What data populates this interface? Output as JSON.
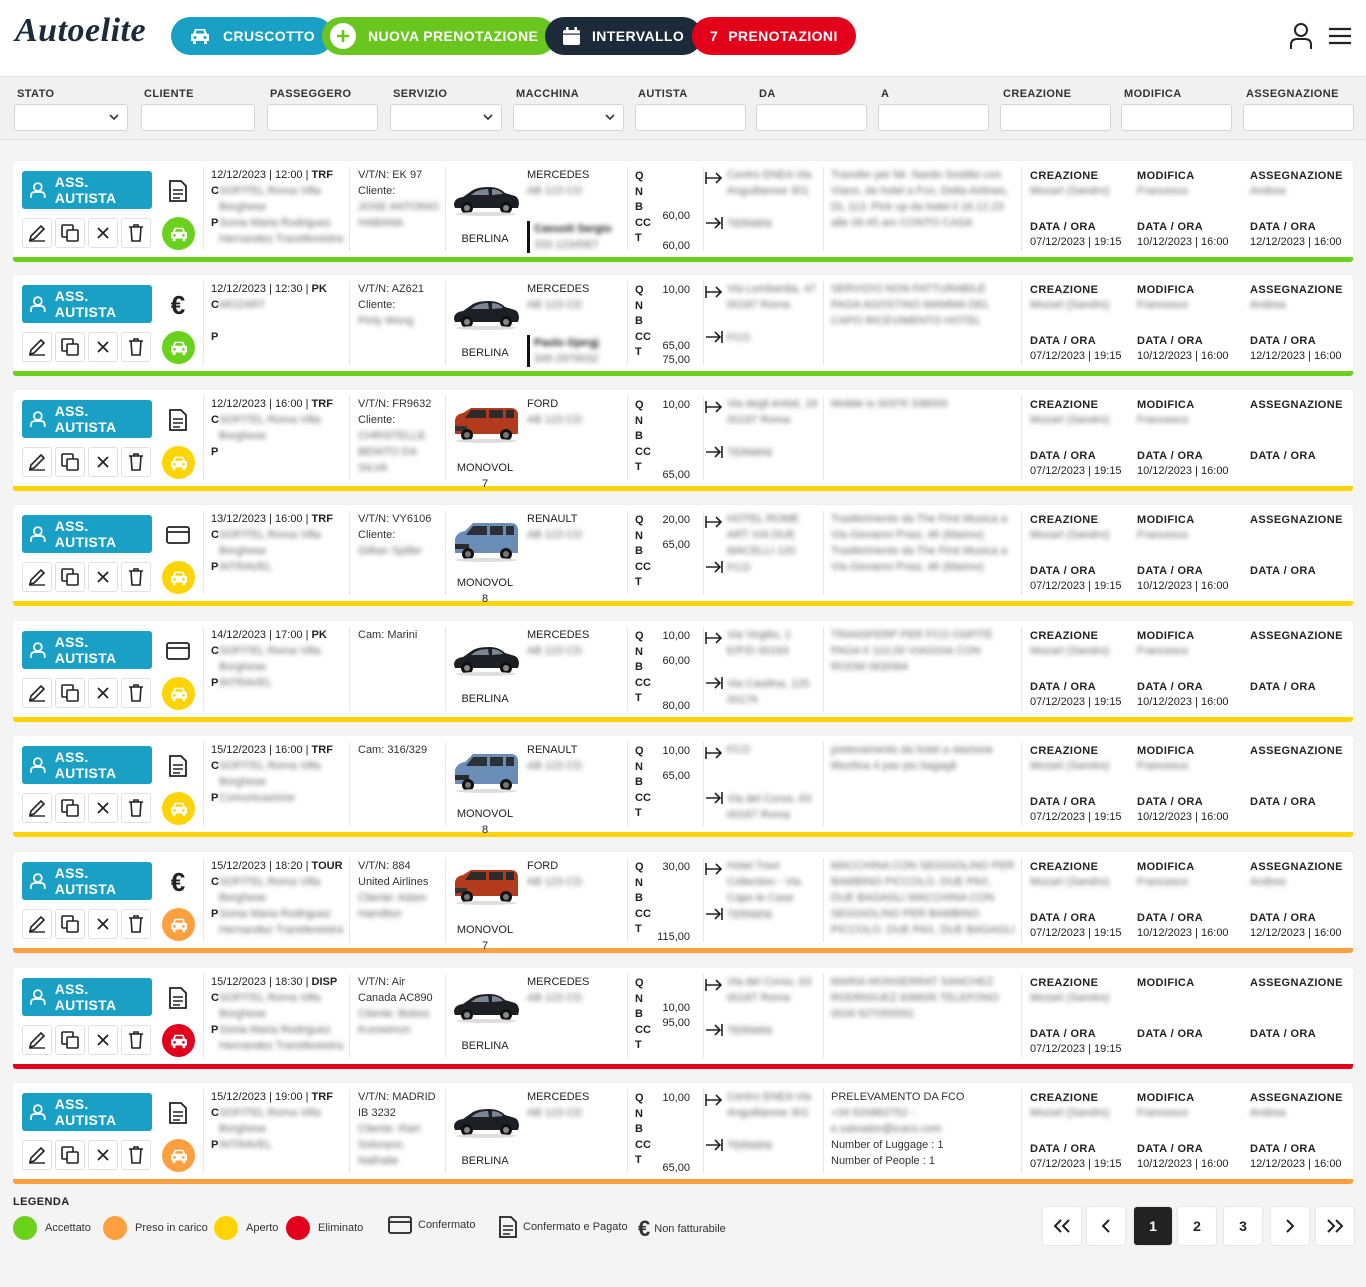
{
  "header": {
    "logo": "Autoelite",
    "btn_dashboard": "CRUSCOTTO",
    "btn_new": "NUOVA PRENOTAZIONE",
    "btn_interval": "INTERVALLO",
    "bookings_count": "7",
    "bookings_label": "PRENOTAZIONI"
  },
  "colors": {
    "blue": "#1aa0c5",
    "green": "#6ad11d",
    "navy": "#1d2a3a",
    "red": "#e3001b",
    "yellow": "#ffd400",
    "orange": "#ff9f40"
  },
  "filters": [
    "STATO",
    "CLIENTE",
    "PASSEGGERO",
    "SERVIZIO",
    "MACCHINA",
    "AUTISTA",
    "DA",
    "A",
    "CREAZIONE",
    "MODIFICA",
    "ASSEGNAZIONE"
  ],
  "labels": {
    "ass": "ASS. AUTISTA",
    "creazione": "CREAZIONE",
    "modifica": "MODIFICA",
    "assegnazione": "ASSEGNAZIONE",
    "dataora": "DATA / ORA",
    "q": "Q",
    "n": "N",
    "b": "B",
    "cc": "CC",
    "t": "T",
    "c": "C",
    "p": "P"
  },
  "rows": [
    {
      "status": "green",
      "pay": "doc",
      "date": "12/12/2023 | 12:00",
      "type": "TRF",
      "cliente": "SOFITEL Roma Villa Borghese",
      "pass": "Sonia Maria Rodriguez Hernandez Transfereistra",
      "vtn": "V/T/N: EK 97",
      "cl_label": "Cliente:",
      "cl_name": "JOSE ANTONIO HABANA",
      "car": "MERCEDES",
      "plate": "AB 123 CD",
      "model": "BERLINA",
      "img": "sedan",
      "drv": "Cavuoti Sergio",
      "tel": "333 1234567",
      "q": "",
      "n": "",
      "b": "60,00",
      "cc": "",
      "t": "60,00",
      "from": "Centro ENEA Via Anguillarese 301",
      "to": "TERMINI",
      "notes": "Transfer per Mr. Nardo Sostilio con Viano, da hotel a Fco, Delta Airlines, DL 113. Pick up da hotel il 18.12.23 alle 06:45 am CONTO CASA",
      "cr_who": "Mozart (Sandro)",
      "cr": "07/12/2023 | 19:15",
      "mo_who": "Francesco",
      "mo": "10/12/2023 | 16:00",
      "as_who": "Andrea",
      "as": "12/12/2023 | 16:00"
    },
    {
      "status": "green",
      "pay": "euro",
      "date": "12/12/2023 | 12:30",
      "type": "PK",
      "cliente": "MOZART",
      "pass": "",
      "vtn": "V/T/N: AZ621",
      "cl_label": "Cliente:",
      "cl_name": "Pinly Wong",
      "car": "MERCEDES",
      "plate": "AB 123 CD",
      "model": "BERLINA",
      "img": "sedan",
      "drv": "Paolo Gjergj",
      "tel": "349 2979032",
      "q": "10,00",
      "n": "",
      "b": "",
      "cc": "65,00",
      "t": "75,00",
      "from": "Via Lombardia, 47 00187 Roma",
      "to": "FCO",
      "notes": "SERVIZIO NON FATTURABILE PAGA AGOSTINO MAMMA DEL CAPO RICEVIMENTO HOTEL",
      "cr_who": "Mozart (Sandro)",
      "cr": "07/12/2023 | 19:15",
      "mo_who": "Francesco",
      "mo": "10/12/2023 | 16:00",
      "as_who": "Andrea",
      "as": "12/12/2023 | 16:00"
    },
    {
      "status": "yellow",
      "pay": "doc",
      "date": "12/12/2023 | 16:00",
      "type": "TRF",
      "cliente": "SOFITEL Roma Villa Borghese",
      "pass": "",
      "vtn": "V/T/N: FR9632",
      "cl_label": "Cliente:",
      "cl_name": "CHRISTELLE BENITO DA SILVA",
      "car": "FORD",
      "plate": "AB 123 CD",
      "model": "MONOVOL 7",
      "img": "vanred",
      "drv": "",
      "tel": "",
      "q": "10,00",
      "n": "",
      "b": "",
      "cc": "",
      "t": "65,00",
      "from": "Via degli Artisti, 18 00187 Roma",
      "to": "TERMINI",
      "notes": "Mobile is 00376 338000",
      "cr_who": "Mozart (Sandro)",
      "cr": "07/12/2023 | 19:15",
      "mo_who": "Francesco",
      "mo": "10/12/2023 | 16:00",
      "as_who": "",
      "as": ""
    },
    {
      "status": "yellow",
      "pay": "card",
      "date": "13/12/2023 | 16:00",
      "type": "TRF",
      "cliente": "SOFITEL Roma Villa Borghese",
      "pass": "INTRAVEL",
      "vtn": "V/T/N: VY6106",
      "cl_label": "Cliente:",
      "cl_name": "Gillian Spiller",
      "car": "RENAULT",
      "plate": "AB 123 CD",
      "model": "MONOVOL 8",
      "img": "vanblue",
      "drv": "",
      "tel": "",
      "q": "20,00",
      "n": "65,00",
      "b": "",
      "cc": "",
      "t": "",
      "from": "HOTEL ROME ART VIA DUE MACELLI 120",
      "to": "FCO",
      "notes": "Trasferimento da The First Musica a Via Giovanni Prasi, 46 (Marino) Trasferimento da The First Musica a Via Giovanni Prasi, 46 (Marino)",
      "cr_who": "Mozart (Sandro)",
      "cr": "07/12/2023 | 19:15",
      "mo_who": "Francesco",
      "mo": "10/12/2023 | 16:00",
      "as_who": "",
      "as": ""
    },
    {
      "status": "yellow",
      "pay": "card",
      "date": "14/12/2023 | 17:00",
      "type": "PK",
      "cliente": "SOFITEL Roma Villa Borghese",
      "pass": "INTRAVEL",
      "vtn": "Cam: Marini",
      "cl_label": "",
      "cl_name": "",
      "car": "MERCEDES",
      "plate": "AB 123 CD",
      "model": "BERLINA",
      "img": "sedan",
      "drv": "",
      "tel": "",
      "q": "10,00",
      "n": "60,00",
      "b": "",
      "cc": "",
      "t": "80,00",
      "from": "Via Virgilio, 1 E/F/D 00193",
      "to": "Via Casilina, 125 00176",
      "notes": "TRANSFERP PER FCO OSPITE PAGA € 110,00 VIAGGIA CON ROOM 063/064",
      "cr_who": "Mozart (Sandro)",
      "cr": "07/12/2023 | 19:15",
      "mo_who": "Francesco",
      "mo": "10/12/2023 | 16:00",
      "as_who": "",
      "as": ""
    },
    {
      "status": "yellow",
      "pay": "doc",
      "date": "15/12/2023 | 16:00",
      "type": "TRF",
      "cliente": "SOFITEL Roma Villa Borghese",
      "pass": "Comunicazione",
      "vtn": "Cam: 316/329",
      "cl_label": "",
      "cl_name": "",
      "car": "RENAULT",
      "plate": "AB 123 CD",
      "model": "MONOVOL 8",
      "img": "vanblue",
      "drv": "",
      "tel": "",
      "q": "10,00",
      "n": "65,00",
      "b": "",
      "cc": "",
      "t": "",
      "from": "FCO",
      "to": "Via del Corso, 63 00187 Roma",
      "notes": "prelevamento da hotel a stazione tiburtina 4 pax piu bagagli",
      "cr_who": "Mozart (Sandro)",
      "cr": "07/12/2023 | 19:15",
      "mo_who": "Francesco",
      "mo": "10/12/2023 | 16:00",
      "as_who": "",
      "as": ""
    },
    {
      "status": "orange",
      "pay": "euro",
      "date": "15/12/2023 | 18:20",
      "type": "TOUR",
      "cliente": "SOFITEL Roma Villa Borghese",
      "pass": "Sonia Maria Rodriguez Hernandez Transfereistra",
      "vtn": "V/T/N: 884",
      "cl_label": "United Airlines",
      "cl_name": "Cliente: Adam Hamilton",
      "car": "FORD",
      "plate": "AB 123 CD",
      "model": "MONOVOL 7",
      "img": "vanred",
      "drv": "",
      "tel": "",
      "q": "30,00",
      "n": "",
      "b": "",
      "cc": "",
      "t": "115,00",
      "from": "Hotel Trevi Collection - Via Capo le Case",
      "to": "TERMINI",
      "notes": "MACCHINA CON SEGGIOLINO PER BAMBINO PICCOLO. DUE PAX, DUE BAGAGLI MACCHINA CON SEGGIOLINO PER BAMBINO PICCOLO. DUE PAX, DUE BAGAGLI",
      "cr_who": "Mozart (Sandro)",
      "cr": "07/12/2023 | 19:15",
      "mo_who": "Francesco",
      "mo": "10/12/2023 | 16:00",
      "as_who": "Andrea",
      "as": "12/12/2023 | 16:00"
    },
    {
      "status": "red",
      "pay": "doc",
      "date": "15/12/2023 | 18:30",
      "type": "DISP",
      "cliente": "SOFITEL Roma Villa Borghese",
      "pass": "Sonia Maria Rodriguez Hernandez Transfereistra",
      "vtn": "V/T/N: Air",
      "cl_label": "Canada AC890",
      "cl_name": "Cliente: Bobos Kurowmun",
      "car": "MERCEDES",
      "plate": "AB 123 CD",
      "model": "BERLINA",
      "img": "sedan",
      "drv": "",
      "tel": "",
      "q": "",
      "n": "10,00",
      "b": "95,00",
      "cc": "",
      "t": "",
      "from": "Via del Corso, 63 00187 Roma",
      "to": "TERMINI",
      "notes": "MARIA MONSERRAT SANCHEZ RODRIGUEZ 836835 TELEFONO 0034 627055592",
      "cr_who": "Mozart (Sandro)",
      "cr": "07/12/2023 | 19:15",
      "mo_who": "",
      "mo": "",
      "as_who": "",
      "as": ""
    },
    {
      "status": "orange",
      "pay": "doc",
      "date": "15/12/2023 | 19:00",
      "type": "TRF",
      "cliente": "SOFITEL Roma Villa Borghese",
      "pass": "INTRAVEL",
      "vtn": "V/T/N: MADRID",
      "cl_label": "IB 3232",
      "cl_name": "Cliente: Iñart Solorano, Nathalie",
      "car": "MERCEDES",
      "plate": "AB 123 CD",
      "model": "BERLINA",
      "img": "sedan",
      "drv": "",
      "tel": "",
      "q": "10,00",
      "n": "",
      "b": "",
      "cc": "",
      "t": "65,00",
      "from": "Centro ENEA Via Anguillarese 301",
      "to": "TERMINI",
      "notes_clear": [
        "PRELEVAMENTO DA FCO"
      ],
      "notes": "+34 620862752 - e.salvador@icacs.com",
      "notes_clear2": [
        "Number of Luggage : 1",
        "Number of People : 1"
      ],
      "cr_who": "Mozart (Sandro)",
      "cr": "07/12/2023 | 19:15",
      "mo_who": "Francesco",
      "mo": "10/12/2023 | 16:00",
      "as_who": "Andrea",
      "as": "12/12/2023 | 16:00"
    }
  ],
  "legend": {
    "title": "LEGENDA",
    "accettato": "Accettato",
    "preso": "Preso in carico",
    "aperto": "Aperto",
    "eliminato": "Eliminato",
    "confermato": "Confermato",
    "confermato_pagato": "Confermato e Pagato",
    "non_fatturabile": "Non fatturabile"
  },
  "pagination": {
    "pages": [
      "1",
      "2",
      "3"
    ],
    "current": "1"
  }
}
